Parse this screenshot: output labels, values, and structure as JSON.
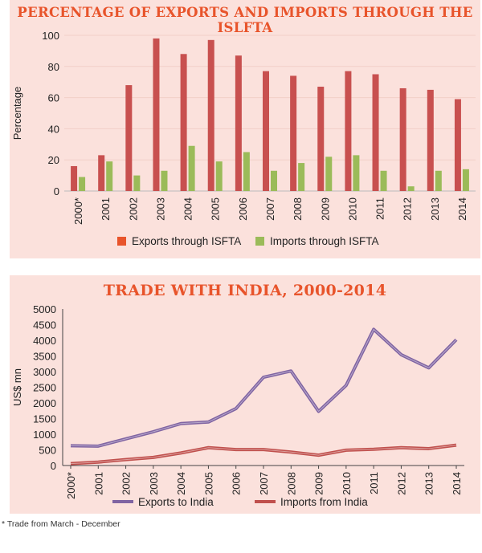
{
  "chart_data": [
    {
      "type": "bar",
      "title": "PERCENTAGE OF EXPORTS AND IMPORTS THROUGH THE ISLFTA",
      "ylabel": "Percentage",
      "xlabel": "",
      "ylim": [
        0,
        100
      ],
      "yticks": [
        0,
        20,
        40,
        60,
        80,
        100
      ],
      "categories": [
        "2000*",
        "2001",
        "2002",
        "2003",
        "2004",
        "2005",
        "2006",
        "2007",
        "2008",
        "2009",
        "2010",
        "2011",
        "2012",
        "2013",
        "2014"
      ],
      "series": [
        {
          "name": "Exports through ISFTA",
          "color": "#c8504f",
          "values": [
            16,
            23,
            68,
            98,
            88,
            97,
            87,
            77,
            74,
            67,
            77,
            75,
            66,
            65,
            59
          ]
        },
        {
          "name": "Imports through ISFTA",
          "color": "#9bbb59",
          "values": [
            9,
            19,
            10,
            13,
            29,
            19,
            25,
            13,
            18,
            22,
            23,
            13,
            3,
            13,
            14
          ]
        }
      ],
      "legend": [
        "Exports through ISFTA",
        "Imports through ISFTA"
      ],
      "legend_colors": [
        "#e8542b",
        "#9bbb59"
      ],
      "legend_position": "bottom",
      "grid": true
    },
    {
      "type": "line",
      "title": "TRADE WITH INDIA, 2000-2014",
      "ylabel": "US$ mn",
      "xlabel": "",
      "ylim": [
        0,
        5000
      ],
      "yticks": [
        0,
        500,
        1000,
        1500,
        2000,
        2500,
        3000,
        3500,
        4000,
        4500,
        5000
      ],
      "categories": [
        "2000*",
        "2001",
        "2002",
        "2003",
        "2004",
        "2005",
        "2006",
        "2007",
        "2008",
        "2009",
        "2010",
        "2011",
        "2012",
        "2013",
        "2014"
      ],
      "series": [
        {
          "name": "Exports to India",
          "color": "#8064a2",
          "values": [
            630,
            620,
            850,
            1080,
            1340,
            1390,
            1820,
            2820,
            3020,
            1730,
            2560,
            4350,
            3540,
            3120,
            4020
          ]
        },
        {
          "name": "Imports from India",
          "color": "#c0504d",
          "values": [
            60,
            110,
            190,
            260,
            400,
            570,
            510,
            510,
            430,
            330,
            490,
            520,
            570,
            540,
            650
          ]
        }
      ],
      "legend": [
        "Exports to India",
        "Imports from India"
      ],
      "legend_position": "bottom",
      "grid": false
    }
  ],
  "footnote": "* Trade from March - December"
}
